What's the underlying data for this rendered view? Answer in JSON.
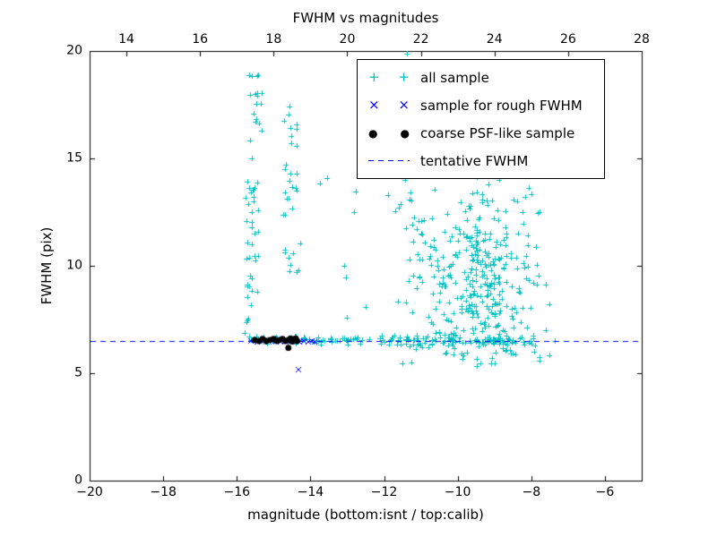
{
  "title": "FWHM vs magnitudes",
  "axes": {
    "xlabel": "magnitude (bottom:isnt / top:calib)",
    "ylabel": "FWHM (pix)",
    "x_bottom": {
      "min": -20,
      "max": -5,
      "ticks": [
        -20,
        -18,
        -16,
        -14,
        -12,
        -10,
        -8,
        -6
      ]
    },
    "x_top": {
      "min": 13,
      "max": 28,
      "ticks": [
        14,
        16,
        18,
        20,
        22,
        24,
        26,
        28
      ]
    },
    "y": {
      "min": 0,
      "max": 20,
      "ticks": [
        0,
        5,
        10,
        15,
        20
      ]
    }
  },
  "legend": {
    "position": "upper right",
    "items": [
      {
        "label": "all sample",
        "marker": "plus",
        "color": "#00bfbf"
      },
      {
        "label": "sample for rough FWHM",
        "marker": "cross",
        "color": "#0000ff"
      },
      {
        "label": "coarse PSF-like sample",
        "marker": "dot",
        "color": "#000000"
      },
      {
        "label": "tentative FWHM",
        "marker": "dashed-line",
        "color": "#0000ff"
      }
    ]
  },
  "marker_glyphs": {
    "plus": "+",
    "cross": "×",
    "dot": "●"
  },
  "chart_data": {
    "type": "scatter",
    "seed": 7,
    "grid": false,
    "tentative_fwhm": 6.5,
    "series": [
      {
        "name": "all sample",
        "marker": "plus",
        "color": "#00bfbf",
        "clusters": [
          {
            "shape": "uniform",
            "n": 42,
            "x": [
              -15.78,
              -15.42
            ],
            "y": [
              6.4,
              13.8
            ]
          },
          {
            "shape": "uniform",
            "n": 20,
            "x": [
              -15.72,
              -15.3
            ],
            "y": [
              13.8,
              18.9
            ]
          },
          {
            "shape": "uniform",
            "n": 26,
            "x": [
              -14.78,
              -14.28
            ],
            "y": [
              10.6,
              17.6
            ]
          },
          {
            "shape": "uniform",
            "n": 6,
            "x": [
              -14.72,
              -14.3
            ],
            "y": [
              8.8,
              10.6
            ]
          },
          {
            "shape": "band",
            "n": 60,
            "x": [
              -15.55,
              -12.0
            ],
            "y_center": 6.55,
            "y_sigma": 0.1
          },
          {
            "shape": "band",
            "n": 115,
            "x": [
              -12.0,
              -7.95
            ],
            "y_center": 6.5,
            "y_sigma": 0.12
          },
          {
            "shape": "gauss",
            "n": 340,
            "cx": -9.4,
            "cy": 9.6,
            "sx": 0.85,
            "sy": 2.1,
            "clip_x": [
              -11.9,
              -7.4
            ],
            "clip_y": [
              5.3,
              14.8
            ]
          },
          {
            "shape": "uniform",
            "n": 14,
            "x": [
              -13.2,
              -11.2
            ],
            "y": [
              9.0,
              14.2
            ]
          },
          {
            "shape": "uniform",
            "n": 10,
            "x": [
              -11.5,
              -8.2
            ],
            "y": [
              5.4,
              6.1
            ]
          }
        ],
        "points": [
          [
            -11.38,
            19.88
          ],
          [
            -13.55,
            14.1
          ],
          [
            -13.75,
            13.85
          ],
          [
            -12.5,
            8.1
          ],
          [
            -13.0,
            7.6
          ],
          [
            -7.5,
            5.85
          ],
          [
            -7.35,
            6.5
          ],
          [
            -7.9,
            6.3
          ],
          [
            -7.6,
            7.0
          ]
        ]
      },
      {
        "name": "sample for rough FWHM",
        "marker": "cross",
        "color": "#0000ff",
        "points": [
          [
            -15.62,
            6.5
          ],
          [
            -15.45,
            6.44
          ],
          [
            -15.28,
            6.52
          ],
          [
            -15.12,
            6.46
          ],
          [
            -14.97,
            6.52
          ],
          [
            -14.82,
            6.45
          ],
          [
            -14.68,
            6.52
          ],
          [
            -14.55,
            6.46
          ],
          [
            -14.42,
            6.52
          ],
          [
            -14.3,
            6.46
          ],
          [
            -14.18,
            6.52
          ],
          [
            -14.07,
            6.46
          ],
          [
            -13.97,
            6.5
          ],
          [
            -13.9,
            6.45
          ],
          [
            -14.33,
            5.17
          ]
        ]
      },
      {
        "name": "coarse PSF-like sample",
        "marker": "dot",
        "color": "#000000",
        "points": [
          [
            -15.52,
            6.55
          ],
          [
            -15.4,
            6.5
          ],
          [
            -15.3,
            6.6
          ],
          [
            -15.2,
            6.5
          ],
          [
            -15.1,
            6.55
          ],
          [
            -15.0,
            6.6
          ],
          [
            -14.92,
            6.5
          ],
          [
            -14.84,
            6.55
          ],
          [
            -14.76,
            6.6
          ],
          [
            -14.68,
            6.5
          ],
          [
            -14.6,
            6.55
          ],
          [
            -14.54,
            6.62
          ],
          [
            -14.5,
            6.48
          ],
          [
            -14.45,
            6.56
          ],
          [
            -14.4,
            6.62
          ],
          [
            -14.36,
            6.5
          ],
          [
            -14.6,
            6.18
          ]
        ]
      },
      {
        "name": "tentative FWHM",
        "marker": "dashed-line",
        "color": "#0000ff",
        "y": 6.5
      }
    ]
  }
}
